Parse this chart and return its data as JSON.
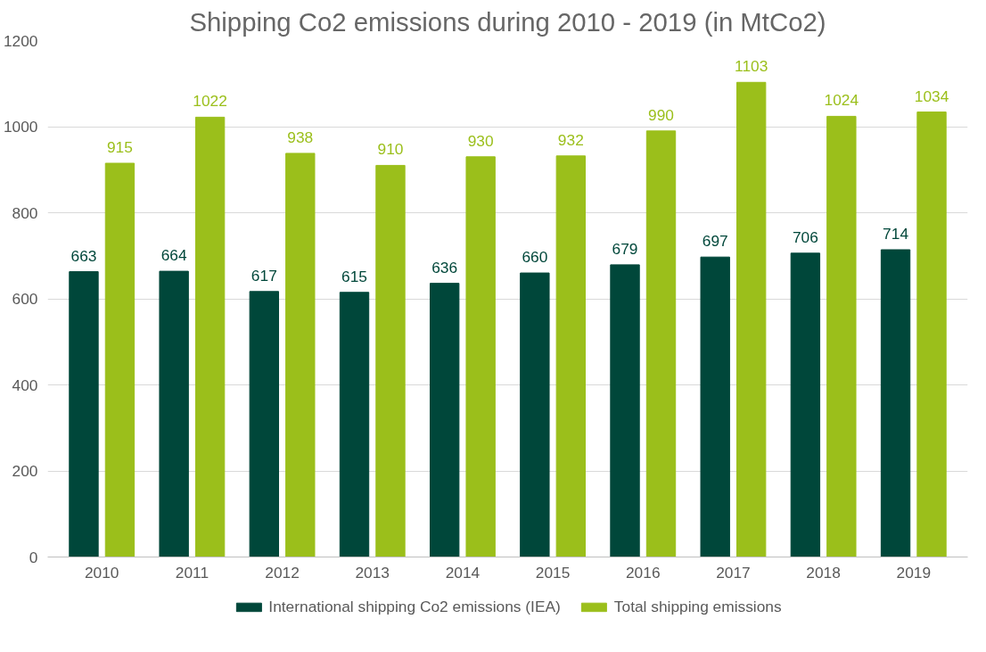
{
  "chart_data": {
    "type": "bar",
    "title": "Shipping Co2 emissions during 2010 - 2019 (in MtCo2)",
    "categories": [
      "2010",
      "2011",
      "2012",
      "2013",
      "2014",
      "2015",
      "2016",
      "2017",
      "2018",
      "2019"
    ],
    "series": [
      {
        "name": "International shipping Co2 emissions (IEA)",
        "color": "#00473a",
        "values": [
          663,
          664,
          617,
          615,
          636,
          660,
          679,
          697,
          706,
          714
        ]
      },
      {
        "name": "Total shipping emissions",
        "color": "#9bbf1b",
        "values": [
          915,
          1022,
          938,
          910,
          930,
          932,
          990,
          1103,
          1024,
          1034
        ]
      }
    ],
    "ylim": [
      0,
      1200
    ],
    "yticks": [
      0,
      200,
      400,
      600,
      800,
      1000,
      1200
    ],
    "grid": "y",
    "legend": "bottom",
    "data_labels": true
  }
}
